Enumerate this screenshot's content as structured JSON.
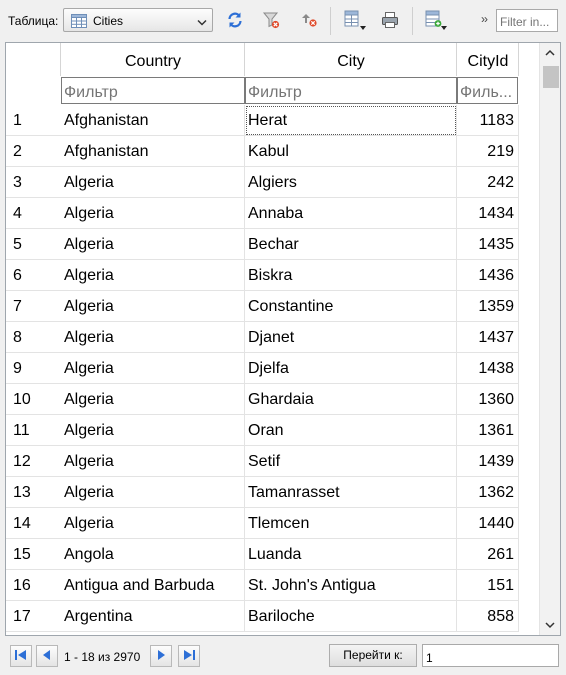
{
  "toolbar": {
    "table_label": "Таблица:",
    "table_select": {
      "value": "Cities",
      "icon": "table-icon"
    },
    "buttons": [
      {
        "name": "refresh-button",
        "icon": "refresh-icon"
      },
      {
        "name": "clear-filter-button",
        "icon": "funnel-clear-icon"
      },
      {
        "name": "sort-button",
        "icon": "sort-icon"
      },
      {
        "name": "export-button",
        "icon": "export-dropdown-icon"
      },
      {
        "name": "print-button",
        "icon": "printer-icon"
      },
      {
        "name": "columns-button",
        "icon": "columns-dropdown-icon"
      }
    ],
    "overflow_chevron": "››",
    "filter_placeholder": "Filter in..."
  },
  "grid": {
    "columns": [
      "",
      "Country",
      "City",
      "CityId"
    ],
    "filter_placeholders": [
      "Фильтр",
      "Фильтр",
      "Филь..."
    ],
    "rows": [
      [
        "1",
        "Afghanistan",
        "Herat",
        "1183"
      ],
      [
        "2",
        "Afghanistan",
        "Kabul",
        "219"
      ],
      [
        "3",
        "Algeria",
        "Algiers",
        "242"
      ],
      [
        "4",
        "Algeria",
        "Annaba",
        "1434"
      ],
      [
        "5",
        "Algeria",
        "Bechar",
        "1435"
      ],
      [
        "6",
        "Algeria",
        "Biskra",
        "1436"
      ],
      [
        "7",
        "Algeria",
        "Constantine",
        "1359"
      ],
      [
        "8",
        "Algeria",
        "Djanet",
        "1437"
      ],
      [
        "9",
        "Algeria",
        "Djelfa",
        "1438"
      ],
      [
        "10",
        "Algeria",
        "Ghardaia",
        "1360"
      ],
      [
        "11",
        "Algeria",
        "Oran",
        "1361"
      ],
      [
        "12",
        "Algeria",
        "Setif",
        "1439"
      ],
      [
        "13",
        "Algeria",
        "Tamanrasset",
        "1362"
      ],
      [
        "14",
        "Algeria",
        "Tlemcen",
        "1440"
      ],
      [
        "15",
        "Angola",
        "Luanda",
        "261"
      ],
      [
        "16",
        "Antigua and Barbuda",
        "St. John's Antigua",
        "151"
      ],
      [
        "17",
        "Argentina",
        "Bariloche",
        "858"
      ]
    ],
    "selected_cell": {
      "row": 0,
      "col": 2
    }
  },
  "pager": {
    "first_icon": "first-page-icon",
    "prev_icon": "prev-page-icon",
    "next_icon": "next-page-icon",
    "last_icon": "last-page-icon",
    "status": "1 - 18 из 2970",
    "goto_label": "Перейти к:",
    "goto_value": "1"
  },
  "colors": {
    "accent_blue": "#2d6fd6",
    "grid_border": "#9fa6ad",
    "toolbar_bg": "#f0f0f0"
  }
}
